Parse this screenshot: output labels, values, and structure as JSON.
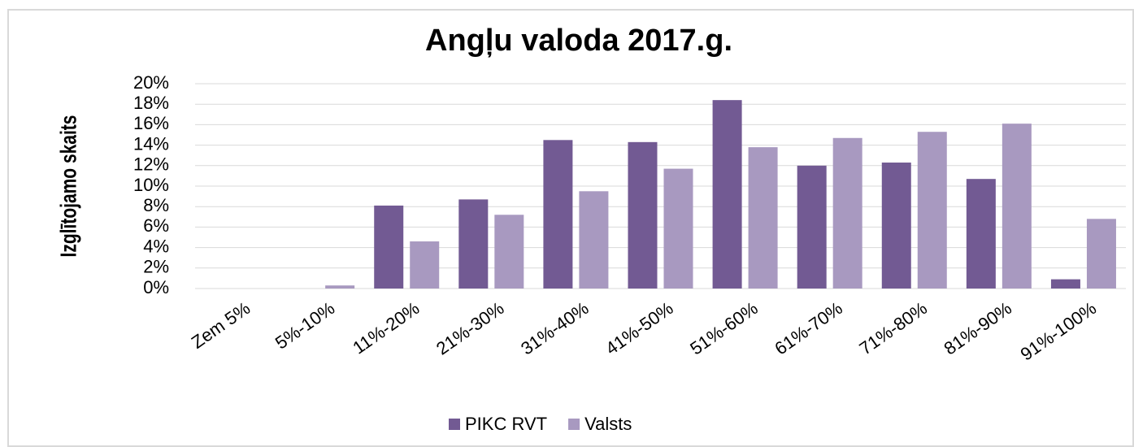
{
  "chart_data": {
    "type": "bar",
    "title": "Angļu valoda 2017.g.",
    "y_label": "Izglītojamo skaits",
    "categories": [
      "Zem 5%",
      "5%-10%",
      "11%-20%",
      "21%-30%",
      "31%-40%",
      "41%-50%",
      "51%-60%",
      "61%-70%",
      "71%-80%",
      "81%-90%",
      "91%-100%"
    ],
    "series": [
      {
        "name": "PIKC RVT",
        "color": "#725a93",
        "values": [
          0,
          0,
          8.1,
          8.7,
          14.5,
          14.3,
          18.4,
          12.0,
          12.3,
          10.7,
          0.9
        ]
      },
      {
        "name": "Valsts",
        "color": "#a899c0",
        "values": [
          0,
          0.3,
          4.6,
          7.2,
          9.5,
          11.7,
          13.8,
          14.7,
          15.3,
          16.1,
          6.8
        ]
      }
    ],
    "ylim": [
      0,
      20
    ],
    "yticks": [
      {
        "value": 0,
        "label": "0%"
      },
      {
        "value": 2,
        "label": "2%"
      },
      {
        "value": 4,
        "label": "4%"
      },
      {
        "value": 6,
        "label": "6%"
      },
      {
        "value": 8,
        "label": "8%"
      },
      {
        "value": 10,
        "label": "10%"
      },
      {
        "value": 12,
        "label": "12%"
      },
      {
        "value": 14,
        "label": "14%"
      },
      {
        "value": 16,
        "label": "16%"
      },
      {
        "value": 18,
        "label": "18%"
      },
      {
        "value": 20,
        "label": "20%"
      }
    ],
    "grid": true,
    "legend": "bottom"
  }
}
